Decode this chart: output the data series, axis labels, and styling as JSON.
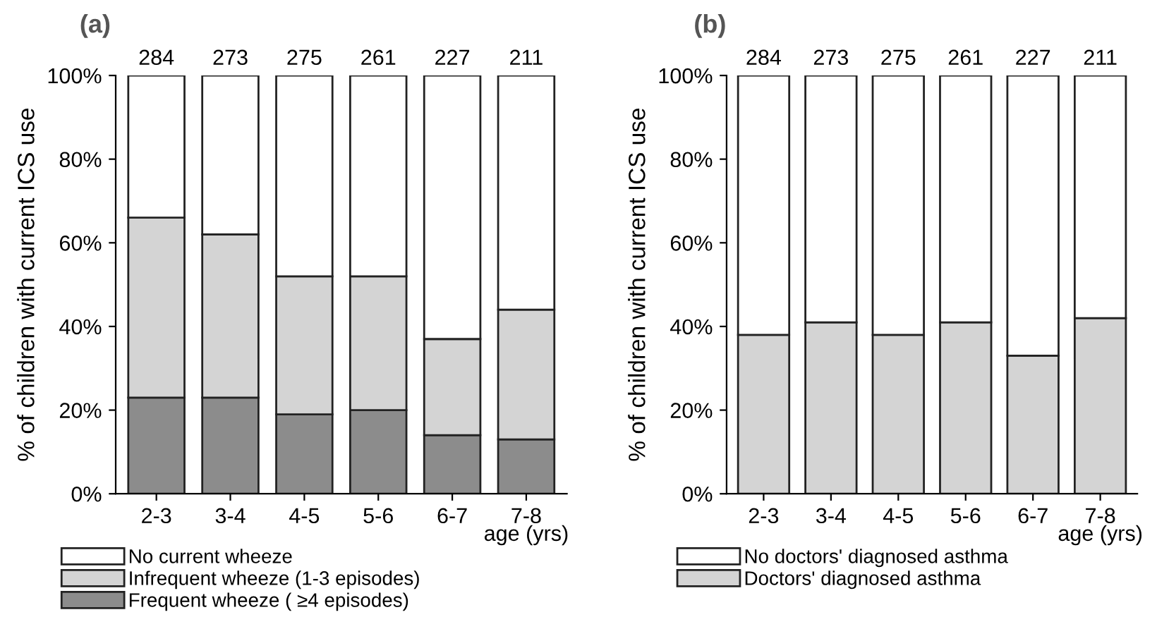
{
  "chart_data": [
    {
      "type": "bar",
      "title": "(a)",
      "xlabel": "age (yrs)",
      "ylabel": "% of children with current ICS use",
      "stacked": true,
      "legend": "bottom",
      "grid": false,
      "categories": [
        "2-3",
        "3-4",
        "4-5",
        "5-6",
        "6-7",
        "7-8"
      ],
      "series": [
        {
          "name": "Frequent wheeze ( ≥4 episodes)",
          "color": "#8c8c8c",
          "values": [
            23,
            23,
            19,
            20,
            14,
            13
          ]
        },
        {
          "name": "Infrequent wheeze (1-3 episodes)",
          "color": "#d4d4d4",
          "values": [
            43,
            39,
            33,
            32,
            23,
            31
          ]
        },
        {
          "name": "No current wheeze",
          "color": "#ffffff",
          "values": [
            34,
            38,
            48,
            48,
            63,
            56
          ]
        }
      ],
      "annotations": [
        "284",
        "273",
        "275",
        "261",
        "227",
        "211"
      ],
      "ylim": [
        0,
        100
      ],
      "yticks": [
        {
          "value": 0,
          "label": "0%"
        },
        {
          "value": 20,
          "label": "20%"
        },
        {
          "value": 40,
          "label": "40%"
        },
        {
          "value": 60,
          "label": "60%"
        },
        {
          "value": 80,
          "label": "80%"
        },
        {
          "value": 100,
          "label": "100%"
        }
      ]
    },
    {
      "type": "bar",
      "title": "(b)",
      "xlabel": "age (yrs)",
      "ylabel": "% of children with current ICS use",
      "stacked": true,
      "legend": "bottom",
      "grid": false,
      "categories": [
        "2-3",
        "3-4",
        "4-5",
        "5-6",
        "6-7",
        "7-8"
      ],
      "series": [
        {
          "name": "Doctors' diagnosed asthma",
          "color": "#d4d4d4",
          "values": [
            38,
            41,
            38,
            41,
            33,
            42
          ]
        },
        {
          "name": "No doctors' diagnosed asthma",
          "color": "#ffffff",
          "values": [
            62,
            59,
            62,
            59,
            67,
            58
          ]
        }
      ],
      "annotations": [
        "284",
        "273",
        "275",
        "261",
        "227",
        "211"
      ],
      "ylim": [
        0,
        100
      ],
      "yticks": [
        {
          "value": 0,
          "label": "0%"
        },
        {
          "value": 20,
          "label": "20%"
        },
        {
          "value": 40,
          "label": "40%"
        },
        {
          "value": 60,
          "label": "60%"
        },
        {
          "value": 80,
          "label": "80%"
        },
        {
          "value": 100,
          "label": "100%"
        }
      ]
    }
  ]
}
